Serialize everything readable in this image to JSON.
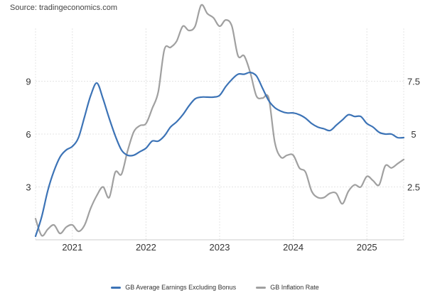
{
  "source": "Source: tradingeconomics.com",
  "chart_data": {
    "type": "line",
    "grid": true,
    "legend_position": "bottom",
    "x_ticks": [
      "2021",
      "2022",
      "2023",
      "2024",
      "2025"
    ],
    "xlim": [
      "2020-07",
      "2025-07"
    ],
    "y_left": {
      "ticks": [
        "3",
        "6",
        "9"
      ],
      "ylim": [
        0,
        12
      ]
    },
    "y_right": {
      "ticks": [
        "2.5",
        "5",
        "7.5"
      ],
      "ylim": [
        0,
        10
      ]
    },
    "series": [
      {
        "name": "GB Average Earnings Excluding Bonus",
        "axis": "left",
        "color": "#3c73b6",
        "x": [
          "2020-07",
          "2020-08",
          "2020-09",
          "2020-10",
          "2020-11",
          "2020-12",
          "2021-01",
          "2021-02",
          "2021-03",
          "2021-04",
          "2021-05",
          "2021-06",
          "2021-07",
          "2021-08",
          "2021-09",
          "2021-10",
          "2021-11",
          "2021-12",
          "2022-01",
          "2022-02",
          "2022-03",
          "2022-04",
          "2022-05",
          "2022-06",
          "2022-07",
          "2022-08",
          "2022-09",
          "2022-10",
          "2022-11",
          "2022-12",
          "2023-01",
          "2023-02",
          "2023-03",
          "2023-04",
          "2023-05",
          "2023-06",
          "2023-07",
          "2023-08",
          "2023-09",
          "2023-10",
          "2023-11",
          "2023-12",
          "2024-01",
          "2024-02",
          "2024-03",
          "2024-04",
          "2024-05",
          "2024-06",
          "2024-07",
          "2024-08",
          "2024-09",
          "2024-10",
          "2024-11",
          "2024-12",
          "2025-01",
          "2025-02",
          "2025-03",
          "2025-04",
          "2025-05",
          "2025-06",
          "2025-07"
        ],
        "values": [
          0.2,
          1.3,
          2.8,
          3.9,
          4.7,
          5.1,
          5.3,
          5.8,
          7.0,
          8.2,
          8.9,
          8.0,
          6.9,
          5.9,
          5.1,
          4.8,
          4.8,
          5.0,
          5.2,
          5.6,
          5.6,
          5.9,
          6.4,
          6.7,
          7.1,
          7.6,
          8.0,
          8.1,
          8.1,
          8.1,
          8.2,
          8.7,
          9.1,
          9.4,
          9.4,
          9.5,
          9.3,
          8.6,
          7.9,
          7.5,
          7.3,
          7.2,
          7.2,
          7.1,
          6.9,
          6.6,
          6.4,
          6.3,
          6.2,
          6.5,
          6.8,
          7.1,
          7.0,
          7.0,
          6.6,
          6.4,
          6.1,
          6.0,
          6.0,
          5.8,
          5.8
        ]
      },
      {
        "name": "GB Inflation Rate",
        "axis": "right",
        "color": "#a0a0a0",
        "x": [
          "2020-07",
          "2020-08",
          "2020-09",
          "2020-10",
          "2020-11",
          "2020-12",
          "2021-01",
          "2021-02",
          "2021-03",
          "2021-04",
          "2021-05",
          "2021-06",
          "2021-07",
          "2021-08",
          "2021-09",
          "2021-10",
          "2021-11",
          "2021-12",
          "2022-01",
          "2022-02",
          "2022-03",
          "2022-04",
          "2022-05",
          "2022-06",
          "2022-07",
          "2022-08",
          "2022-09",
          "2022-10",
          "2022-11",
          "2022-12",
          "2023-01",
          "2023-02",
          "2023-03",
          "2023-04",
          "2023-05",
          "2023-06",
          "2023-07",
          "2023-08",
          "2023-09",
          "2023-10",
          "2023-11",
          "2023-12",
          "2024-01",
          "2024-02",
          "2024-03",
          "2024-04",
          "2024-05",
          "2024-06",
          "2024-07",
          "2024-08",
          "2024-09",
          "2024-10",
          "2024-11",
          "2024-12",
          "2025-01",
          "2025-02",
          "2025-03",
          "2025-04",
          "2025-05",
          "2025-06",
          "2025-07"
        ],
        "values": [
          1.0,
          0.2,
          0.5,
          0.7,
          0.3,
          0.6,
          0.7,
          0.4,
          0.7,
          1.5,
          2.1,
          2.5,
          2.0,
          3.2,
          3.1,
          4.2,
          5.1,
          5.4,
          5.5,
          6.2,
          7.0,
          9.0,
          9.1,
          9.4,
          10.1,
          9.9,
          10.1,
          11.1,
          10.7,
          10.5,
          10.1,
          10.4,
          10.1,
          8.7,
          8.7,
          7.9,
          6.8,
          6.7,
          6.7,
          4.6,
          3.9,
          4.0,
          4.0,
          3.4,
          3.2,
          2.3,
          2.0,
          2.0,
          2.2,
          2.2,
          1.7,
          2.3,
          2.6,
          2.5,
          3.0,
          2.8,
          2.6,
          3.5,
          3.4,
          3.6,
          3.8
        ]
      }
    ]
  }
}
